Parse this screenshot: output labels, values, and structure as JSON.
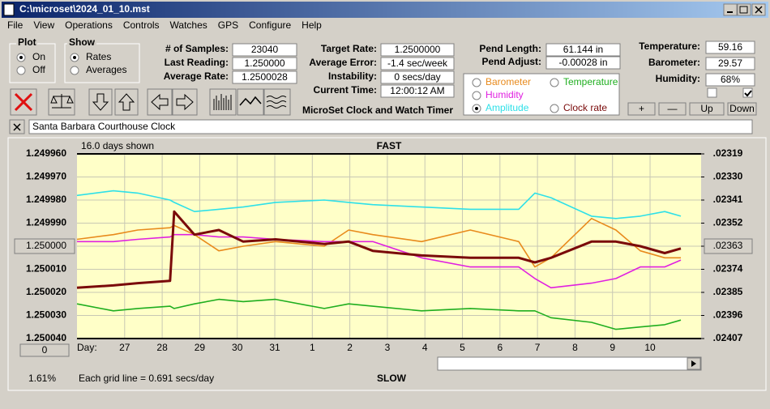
{
  "window": {
    "title": "C:\\microset\\2024_01_10.mst"
  },
  "menu": [
    "File",
    "View",
    "Operations",
    "Controls",
    "Watches",
    "GPS",
    "Configure",
    "Help"
  ],
  "plot_group": {
    "title": "Plot",
    "options": [
      "On",
      "Off"
    ],
    "selected": 0
  },
  "show_group": {
    "title": "Show",
    "options": [
      "Rates",
      "Averages"
    ],
    "selected": 0
  },
  "fields_1": [
    {
      "label": "# of Samples:",
      "value": "23040"
    },
    {
      "label": "Last Reading:",
      "value": "1.250000"
    },
    {
      "label": "Average Rate:",
      "value": "1.2500028"
    }
  ],
  "fields_2": [
    {
      "label": "Target Rate:",
      "value": "1.2500000"
    },
    {
      "label": "Average Error:",
      "value": "-1.4 sec/week"
    },
    {
      "label": "Instability:",
      "value": "0 secs/day"
    },
    {
      "label": "Current Time:",
      "value": "12:00:12 AM"
    }
  ],
  "fields_3": [
    {
      "label": "Pend Length:",
      "value": "61.144 in"
    },
    {
      "label": "Pend Adjust:",
      "value": "-0.00028 in"
    }
  ],
  "fields_4": [
    {
      "label": "Temperature:",
      "value": "59.16"
    },
    {
      "label": "Barometer:",
      "value": "29.57"
    },
    {
      "label": "Humidity:",
      "value": "68%"
    }
  ],
  "checkboxes": [
    false,
    true
  ],
  "adjust_buttons": [
    "+",
    "—",
    "Up",
    "Down"
  ],
  "app_name": "MicroSet Clock and Watch Timer",
  "description": "Santa Barbara Courthouse Clock",
  "chart_data": {
    "type": "line",
    "title": "FAST",
    "bottom_label": "SLOW",
    "span_label": "16.0 days shown",
    "note": "Each grid line = 0.691 secs/day",
    "x_label": "Day:",
    "scroll_value": "0",
    "progress": "1.61%",
    "legend_selected": 3,
    "grid": true,
    "x": [
      0,
      0.97,
      1.62,
      2.48,
      2.59,
      3.13,
      3.78,
      4.43,
      5.29,
      6.59,
      7.24,
      7.88,
      9.18,
      10.48,
      11.77,
      12.2,
      12.63,
      13.71,
      14.36,
      15.01,
      15.66,
      16.09
    ],
    "xlim": [
      0,
      16.63
    ],
    "xticks": [
      {
        "value": 1.27,
        "label": "27"
      },
      {
        "value": 2.27,
        "label": "28"
      },
      {
        "value": 3.27,
        "label": "29"
      },
      {
        "value": 4.27,
        "label": "30"
      },
      {
        "value": 5.27,
        "label": "31"
      },
      {
        "value": 6.27,
        "label": "1"
      },
      {
        "value": 7.27,
        "label": "2"
      },
      {
        "value": 8.27,
        "label": "3"
      },
      {
        "value": 9.27,
        "label": "4"
      },
      {
        "value": 10.27,
        "label": "5"
      },
      {
        "value": 11.27,
        "label": "6"
      },
      {
        "value": 12.27,
        "label": "7"
      },
      {
        "value": 13.27,
        "label": "8"
      },
      {
        "value": 14.27,
        "label": "9"
      },
      {
        "value": 15.27,
        "label": "10"
      }
    ],
    "ylim": [
      1.25004,
      1.24996
    ],
    "yticks": [
      {
        "value": 1.24996,
        "label": "1.249960"
      },
      {
        "value": 1.24997,
        "label": "1.249970"
      },
      {
        "value": 1.24998,
        "label": "1.249980"
      },
      {
        "value": 1.24999,
        "label": "1.249990"
      },
      {
        "value": 1.25,
        "label": "1.250000"
      },
      {
        "value": 1.25001,
        "label": "1.250010"
      },
      {
        "value": 1.25002,
        "label": "1.250020"
      },
      {
        "value": 1.25003,
        "label": "1.250030"
      },
      {
        "value": 1.25004,
        "label": "1.250040"
      }
    ],
    "y2lim": [
      0.02407,
      0.02319
    ],
    "y2ticks": [
      {
        "value": 0.02319,
        "label": ".02319"
      },
      {
        "value": 0.0233,
        "label": ".02330"
      },
      {
        "value": 0.02341,
        "label": ".02341"
      },
      {
        "value": 0.02352,
        "label": ".02352"
      },
      {
        "value": 0.02363,
        "label": ".02363"
      },
      {
        "value": 0.02374,
        "label": ".02374"
      },
      {
        "value": 0.02385,
        "label": ".02385"
      },
      {
        "value": 0.02396,
        "label": ".02396"
      },
      {
        "value": 0.02407,
        "label": ".02407"
      }
    ],
    "series": [
      {
        "name": "Barometer",
        "color": "#e88a1c",
        "values": [
          1.249997,
          1.249995,
          1.249993,
          1.249992,
          1.249991,
          1.249995,
          1.250002,
          1.25,
          1.249998,
          1.25,
          1.249993,
          1.249995,
          1.249998,
          1.249993,
          1.249998,
          1.250009,
          1.250005,
          1.249988,
          1.249993,
          1.250002,
          1.250005,
          1.250005
        ]
      },
      {
        "name": "Temperature",
        "color": "#1fae1f",
        "values": [
          1.250025,
          1.250028,
          1.250027,
          1.250026,
          1.250027,
          1.250025,
          1.250023,
          1.250024,
          1.250023,
          1.250027,
          1.250025,
          1.250026,
          1.250028,
          1.250027,
          1.250028,
          1.250028,
          1.250031,
          1.250033,
          1.250036,
          1.250035,
          1.250034,
          1.250032
        ]
      },
      {
        "name": "Humidity",
        "color": "#e020e0",
        "values": [
          1.249998,
          1.249998,
          1.249997,
          1.249996,
          1.249995,
          1.249995,
          1.249996,
          1.249996,
          1.249997,
          1.249998,
          1.249998,
          1.249998,
          1.250005,
          1.250009,
          1.250009,
          1.250014,
          1.250018,
          1.250016,
          1.250014,
          1.250009,
          1.250009,
          1.250006
        ]
      },
      {
        "name": "Amplitude",
        "color": "#2ee0e8",
        "values": [
          1.249978,
          1.249976,
          1.249977,
          1.24998,
          1.249981,
          1.249985,
          1.249984,
          1.249983,
          1.249981,
          1.24998,
          1.249981,
          1.249982,
          1.249983,
          1.249984,
          1.249984,
          1.249977,
          1.249979,
          1.249987,
          1.249988,
          1.249987,
          1.249985,
          1.249987
        ]
      },
      {
        "name": "Clock rate",
        "color": "#7a0a0a",
        "values": [
          1.250018,
          1.250017,
          1.250016,
          1.250015,
          1.249985,
          1.249995,
          1.249993,
          1.249998,
          1.249997,
          1.249999,
          1.249998,
          1.250002,
          1.250004,
          1.250005,
          1.250005,
          1.250007,
          1.250005,
          1.249998,
          1.249998,
          1.25,
          1.250003,
          1.250001
        ]
      }
    ]
  }
}
